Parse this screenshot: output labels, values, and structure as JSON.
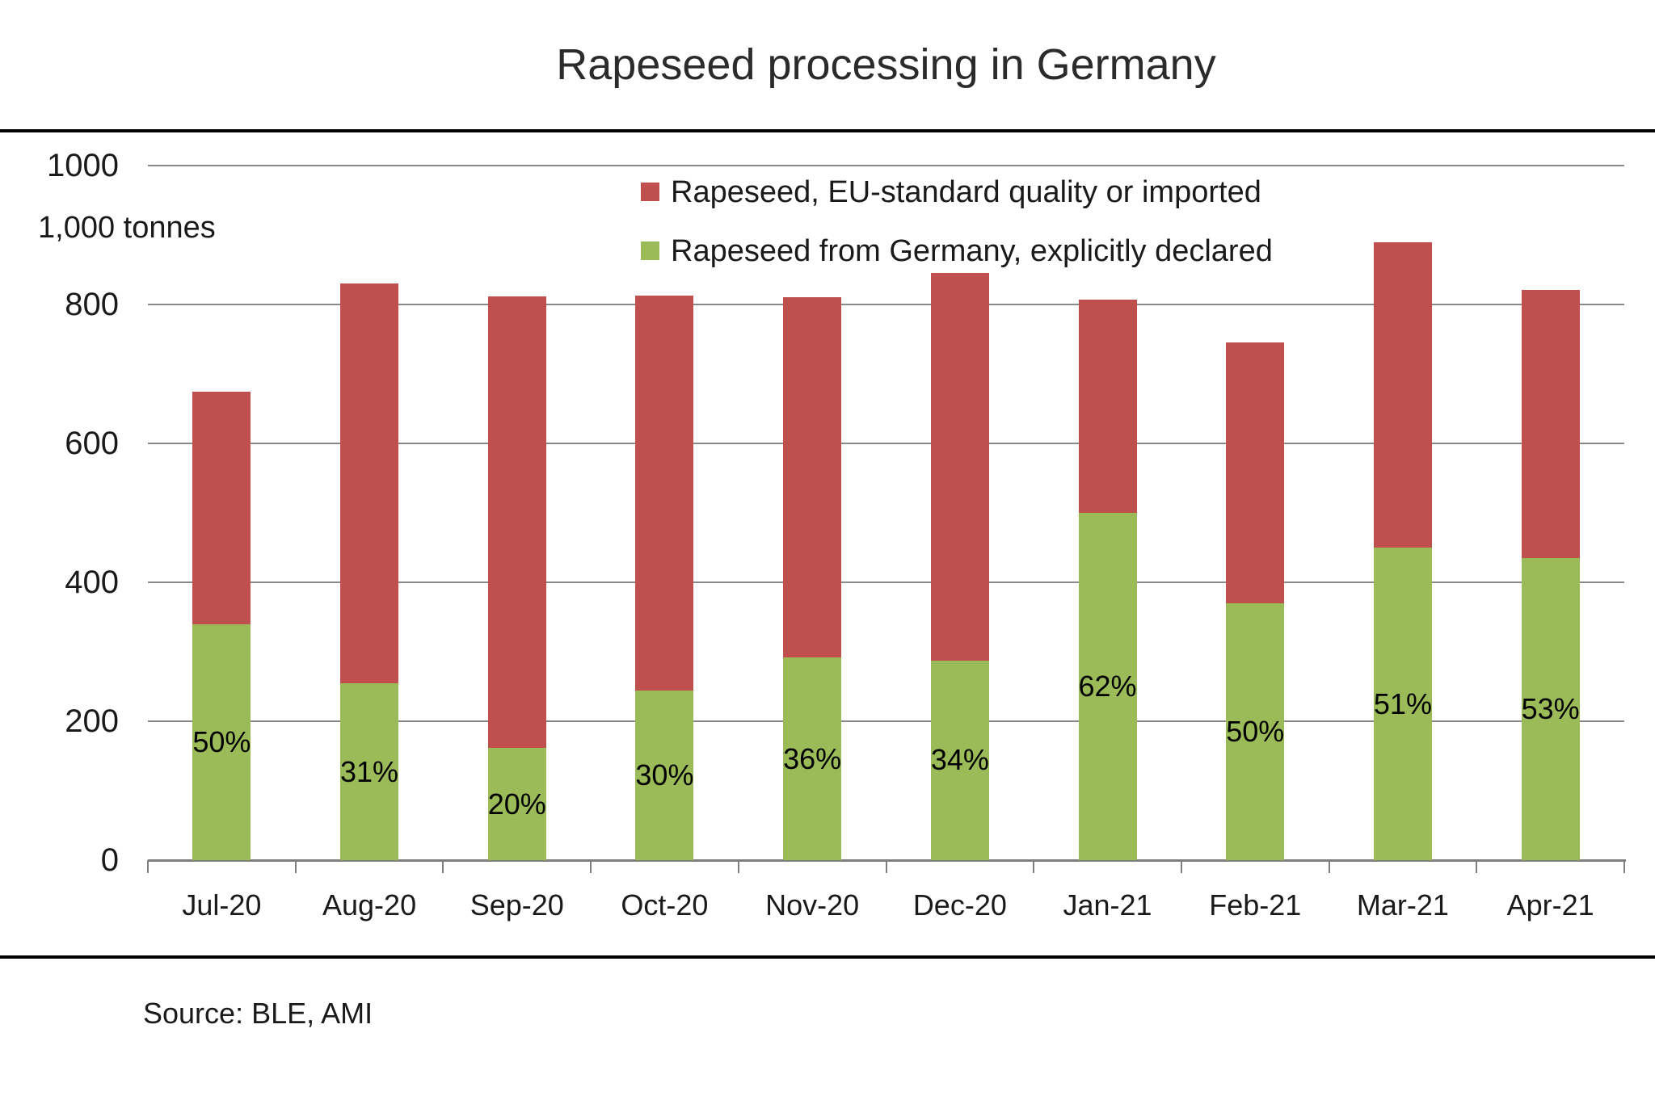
{
  "title": "Rapeseed processing in Germany",
  "y_axis": {
    "unit_label": "1,000 tonnes",
    "ticks": [
      "1000",
      "800",
      "600",
      "400",
      "200",
      "0"
    ],
    "tick_values": [
      1000,
      800,
      600,
      400,
      200,
      0
    ],
    "max": 1000
  },
  "legend": {
    "items": [
      {
        "label": "Rapeseed, EU-standard quality or imported",
        "color": "#C0504D",
        "series": "imported"
      },
      {
        "label": "Rapeseed from Germany, explicitly declared",
        "color": "#9BBB59",
        "series": "domestic"
      }
    ]
  },
  "source_note": "Source: BLE, AMI",
  "colors": {
    "imported_red": "#C0504D",
    "domestic_green": "#9BBB59",
    "gridline_gray": "#898989",
    "border_black": "#000000"
  },
  "chart_data": {
    "type": "bar",
    "stacked": true,
    "title": "Rapeseed processing in Germany",
    "ylabel": "1,000 tonnes",
    "ylim": [
      0,
      1000
    ],
    "grid": true,
    "legend_position": "top-right-inside",
    "categories": [
      "Jul-20",
      "Aug-20",
      "Sep-20",
      "Oct-20",
      "Nov-20",
      "Dec-20",
      "Jan-21",
      "Feb-21",
      "Mar-21",
      "Apr-21"
    ],
    "series": [
      {
        "name": "Rapeseed from Germany, explicitly declared",
        "color": "#9BBB59",
        "values": [
          340,
          255,
          162,
          244,
          292,
          287,
          500,
          370,
          450,
          435
        ]
      },
      {
        "name": "Rapeseed, EU-standard quality or imported",
        "color": "#C0504D",
        "values": [
          335,
          575,
          650,
          569,
          518,
          558,
          307,
          375,
          440,
          386
        ]
      }
    ],
    "totals": [
      675,
      830,
      812,
      813,
      810,
      845,
      807,
      745,
      890,
      821
    ],
    "bar_labels": [
      "50%",
      "31%",
      "20%",
      "30%",
      "36%",
      "34%",
      "62%",
      "50%",
      "51%",
      "53%"
    ]
  }
}
